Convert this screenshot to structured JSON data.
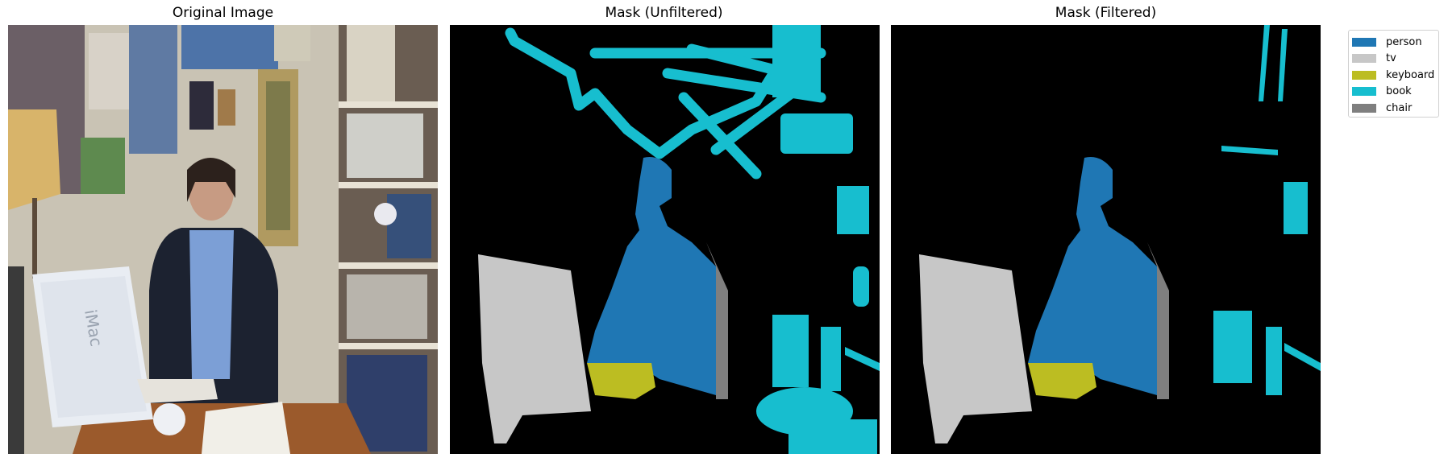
{
  "titles": {
    "original": "Original Image",
    "unfiltered": "Mask (Unfiltered)",
    "filtered": "Mask (Filtered)"
  },
  "legend": [
    {
      "label": "person",
      "color": "#1f77b4"
    },
    {
      "label": "tv",
      "color": "#c7c7c7"
    },
    {
      "label": "keyboard",
      "color": "#bcbd22"
    },
    {
      "label": "book",
      "color": "#17becf"
    },
    {
      "label": "chair",
      "color": "#7f7f7f"
    }
  ],
  "mask_background": "#000000",
  "monitor_brand_text": "iMac"
}
